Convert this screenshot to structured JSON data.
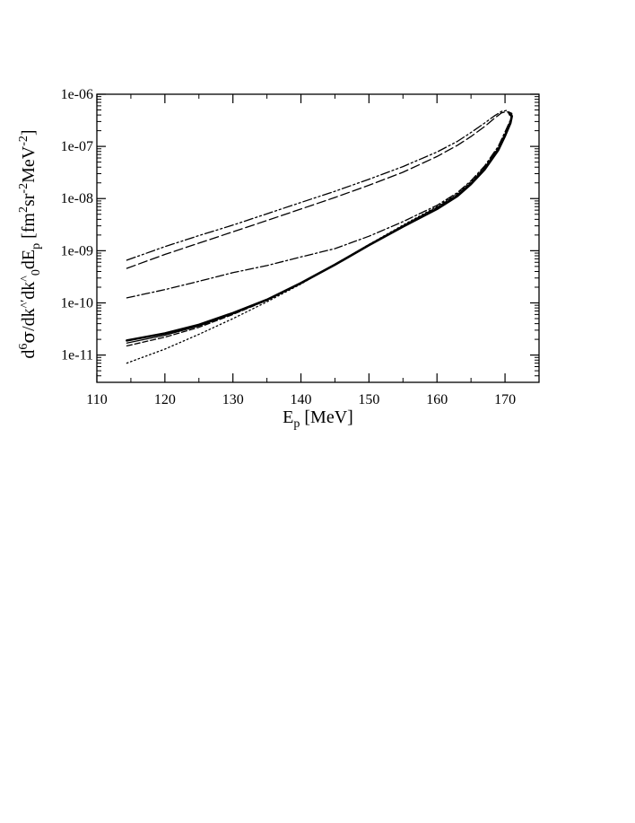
{
  "chart_data": {
    "type": "line",
    "title": "",
    "xlabel": "E_p [MeV]",
    "xlabel_main": "E",
    "xlabel_sub": "p",
    "xlabel_rest": " [MeV]",
    "ylabel": "d^6σ/dk̂′dk̂_0dE_p [fm^2sr^-2MeV^-2]",
    "xlim": [
      110,
      175
    ],
    "ylim": [
      3e-12,
      1e-06
    ],
    "yscale": "log",
    "x_ticks": [
      110,
      120,
      130,
      140,
      150,
      160,
      170
    ],
    "x_tick_labels": [
      "110",
      "120",
      "130",
      "140",
      "150",
      "160",
      "170"
    ],
    "y_ticks": [
      1e-11,
      1e-10,
      1e-09,
      1e-08,
      1e-07,
      1e-06
    ],
    "y_tick_labels": [
      "1e-11",
      "1e-10",
      "1e-09",
      "1e-08",
      "1e-07",
      "1e-06"
    ],
    "grid": false,
    "series": [
      {
        "style": "solid-thick",
        "x": [
          114.4,
          120,
          125,
          130,
          135,
          140,
          145,
          150,
          155,
          160,
          163,
          165,
          167,
          169,
          170,
          170.8,
          171.0,
          170.7
        ],
        "y": [
          1.9e-11,
          2.6e-11,
          3.8e-11,
          6.4e-11,
          1.15e-10,
          2.4e-10,
          5.4e-10,
          1.28e-09,
          2.9e-09,
          6.3e-09,
          1.12e-08,
          1.9e-08,
          3.6e-08,
          8.5e-08,
          1.6e-07,
          2.8e-07,
          3.8e-07,
          4.1e-07
        ]
      },
      {
        "style": "solid-thin",
        "x": [
          114.4,
          120,
          125,
          130,
          135,
          140,
          145,
          150,
          155,
          160,
          163,
          165,
          167,
          169,
          170,
          170.8,
          171.0,
          170.7
        ],
        "y": [
          1.7e-11,
          2.4e-11,
          3.6e-11,
          6.2e-11,
          1.13e-10,
          2.35e-10,
          5.3e-10,
          1.26e-09,
          2.95e-09,
          6.5e-09,
          1.15e-08,
          1.95e-08,
          3.7e-08,
          8.8e-08,
          1.65e-07,
          2.9e-07,
          3.9e-07,
          4.2e-07
        ]
      },
      {
        "style": "dashed",
        "x": [
          114.4,
          120,
          125,
          130,
          135,
          140,
          145,
          150,
          155,
          160,
          163,
          165,
          167,
          169,
          170,
          170.8,
          171.0,
          170.6
        ],
        "y": [
          1.5e-11,
          2.2e-11,
          3.4e-11,
          6e-11,
          1.12e-10,
          2.4e-10,
          5.4e-10,
          1.3e-09,
          3e-09,
          6.8e-09,
          1.2e-08,
          2e-08,
          3.9e-08,
          9.2e-08,
          1.7e-07,
          3e-07,
          4e-07,
          4.4e-07
        ]
      },
      {
        "style": "dotted",
        "x": [
          114.4,
          120,
          125,
          130,
          135,
          140,
          145,
          150,
          155,
          160,
          163,
          165,
          167,
          169,
          170,
          170.8,
          171.0,
          170.6
        ],
        "y": [
          7e-12,
          1.3e-11,
          2.5e-11,
          5e-11,
          1.05e-10,
          2.3e-10,
          5.5e-10,
          1.32e-09,
          3.1e-09,
          7e-09,
          1.25e-08,
          2.1e-08,
          4e-08,
          9.5e-08,
          1.75e-07,
          3.1e-07,
          4.1e-07,
          4.5e-07
        ]
      },
      {
        "style": "dash-dot",
        "x": [
          114.4,
          120,
          125,
          130,
          135,
          140,
          145,
          150,
          155,
          160,
          163,
          165,
          167,
          169,
          170,
          170.8,
          171.0,
          170.5
        ],
        "y": [
          1.25e-10,
          1.8e-10,
          2.6e-10,
          3.8e-10,
          5.2e-10,
          7.6e-10,
          1.1e-09,
          1.9e-09,
          3.6e-09,
          7.4e-09,
          1.3e-08,
          2.2e-08,
          4.2e-08,
          1e-07,
          1.9e-07,
          3.2e-07,
          4.3e-07,
          4.6e-07
        ]
      },
      {
        "style": "long-dash",
        "x": [
          114.4,
          120,
          125,
          130,
          135,
          140,
          145,
          150,
          155,
          160,
          163,
          165,
          167,
          168.5,
          169.5,
          170.3,
          170.6
        ],
        "y": [
          4.6e-10,
          8.5e-10,
          1.4e-09,
          2.3e-09,
          3.8e-09,
          6.3e-09,
          1.05e-08,
          1.8e-08,
          3.2e-08,
          6.4e-08,
          1.05e-07,
          1.55e-07,
          2.4e-07,
          3.5e-07,
          4.4e-07,
          4.7e-07,
          4.2e-07
        ]
      },
      {
        "style": "dash-dot-dot",
        "x": [
          114.4,
          120,
          125,
          130,
          135,
          140,
          145,
          150,
          155,
          160,
          163,
          165,
          167,
          168.5,
          169.5,
          170.3,
          170.6
        ],
        "y": [
          6.6e-10,
          1.2e-09,
          1.95e-09,
          3.1e-09,
          5.1e-09,
          8.4e-09,
          1.38e-08,
          2.35e-08,
          4.1e-08,
          7.8e-08,
          1.25e-07,
          1.85e-07,
          2.8e-07,
          3.9e-07,
          4.7e-07,
          4.9e-07,
          4.5e-07
        ]
      }
    ]
  }
}
